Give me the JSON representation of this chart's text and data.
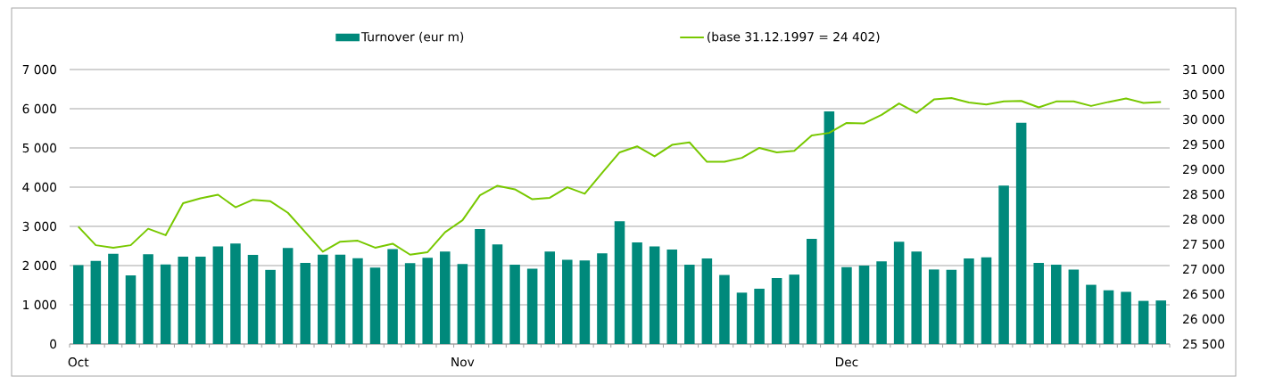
{
  "chart_data": {
    "type": "bar",
    "categories": [
      "Oct",
      null,
      null,
      null,
      null,
      null,
      null,
      null,
      null,
      null,
      null,
      null,
      null,
      null,
      null,
      null,
      null,
      null,
      null,
      null,
      null,
      null,
      "Nov",
      null,
      null,
      null,
      null,
      null,
      null,
      null,
      null,
      null,
      null,
      null,
      null,
      null,
      null,
      null,
      null,
      null,
      null,
      null,
      null,
      null,
      "Dec",
      null,
      null,
      null,
      null,
      null,
      null,
      null,
      null,
      null,
      null,
      null,
      null,
      null,
      null,
      null,
      null,
      null,
      null
    ],
    "series": [
      {
        "name": "Turnover (eur m)",
        "color": "#00897b",
        "values": [
          2010,
          2120,
          2300,
          1750,
          2290,
          2030,
          2230,
          2230,
          2490,
          2560,
          2270,
          1890,
          2450,
          2070,
          2280,
          2280,
          2190,
          1950,
          2420,
          2060,
          2200,
          2360,
          2040,
          2930,
          2540,
          2020,
          1920,
          2360,
          2150,
          2130,
          2310,
          3130,
          2590,
          2490,
          2410,
          2020,
          2180,
          1760,
          1310,
          1410,
          1680,
          1770,
          2680,
          5930,
          1960,
          2000,
          2110,
          2610,
          2360,
          1900,
          1890,
          2180,
          2210,
          4040,
          5640,
          2070,
          2020,
          1900,
          1510,
          1370,
          1330,
          1100,
          1110
        ]
      },
      {
        "name": "(base 31.12.1997 = 24 402)",
        "type": "line",
        "axis": "y2",
        "color": "#78c800",
        "values": [
          27850,
          27480,
          27430,
          27480,
          27810,
          27680,
          28320,
          28420,
          28490,
          28240,
          28390,
          28360,
          28130,
          27740,
          27350,
          27550,
          27570,
          27430,
          27510,
          27290,
          27340,
          27740,
          27980,
          28480,
          28670,
          28600,
          28400,
          28430,
          28640,
          28510,
          28930,
          29340,
          29460,
          29260,
          29490,
          29540,
          29150,
          29150,
          29230,
          29430,
          29340,
          29370,
          29680,
          29730,
          29930,
          29920,
          30090,
          30320,
          30130,
          30400,
          30430,
          30340,
          30300,
          30360,
          30370,
          30240,
          30360,
          30360,
          30270,
          30350,
          30420,
          30330,
          30350
        ]
      }
    ],
    "ylim": [
      0,
      7000
    ],
    "yticks": [
      0,
      {
        "value": 1000,
        "label": "1 000"
      },
      {
        "value": 2000,
        "label": "2 000"
      },
      {
        "value": 3000,
        "label": "3 000"
      },
      {
        "value": 4000,
        "label": "4 000"
      },
      {
        "value": 5000,
        "label": "5 000"
      },
      {
        "value": 6000,
        "label": "6 000"
      },
      {
        "value": 7000,
        "label": "7 000"
      }
    ],
    "y2lim": [
      25500,
      31000
    ],
    "y2ticks": [
      {
        "value": 25500,
        "label": "25 500"
      },
      {
        "value": 26000,
        "label": "26 000"
      },
      {
        "value": 26500,
        "label": "26 500"
      },
      {
        "value": 27000,
        "label": "27 000"
      },
      {
        "value": 27500,
        "label": "27 500"
      },
      {
        "value": 28000,
        "label": "28 000"
      },
      {
        "value": 28500,
        "label": "28 500"
      },
      {
        "value": 29000,
        "label": "29 000"
      },
      {
        "value": 29500,
        "label": "29 500"
      },
      {
        "value": 30000,
        "label": "30 000"
      },
      {
        "value": 30500,
        "label": "30 500"
      },
      {
        "value": 31000,
        "label": "31 000"
      }
    ],
    "grid": "y",
    "legend": "top",
    "line_style": "solid"
  }
}
